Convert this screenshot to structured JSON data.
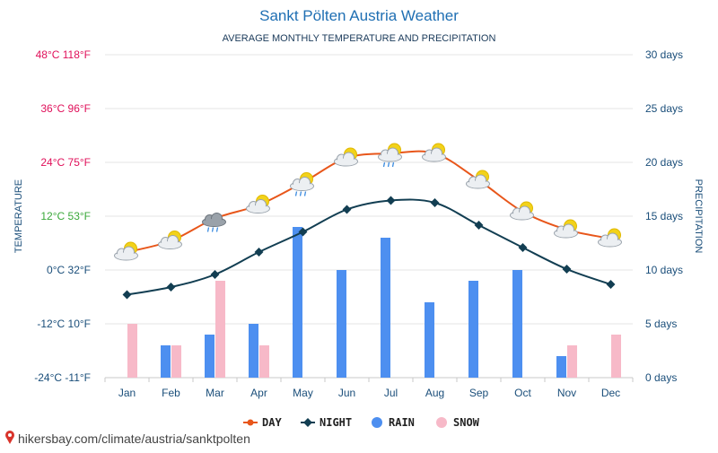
{
  "title": "Sankt Pölten Austria Weather",
  "subtitle": "AVERAGE MONTHLY TEMPERATURE AND PRECIPITATION",
  "source": "hikersbay.com/climate/austria/sanktpolten",
  "chart_data": {
    "type": "line",
    "categories": [
      "Jan",
      "Feb",
      "Mar",
      "Apr",
      "May",
      "Jun",
      "Jul",
      "Aug",
      "Sep",
      "Oct",
      "Nov",
      "Dec"
    ],
    "left_axis": {
      "title": "TEMPERATURE",
      "unit": "°C",
      "ylim": [
        -24,
        48
      ],
      "ticks": [
        {
          "value": 48,
          "label": "48°C 118°F",
          "color": "#e0105a"
        },
        {
          "value": 36,
          "label": "36°C 96°F",
          "color": "#e0105a"
        },
        {
          "value": 24,
          "label": "24°C 75°F",
          "color": "#e0105a"
        },
        {
          "value": 12,
          "label": "12°C 53°F",
          "color": "#3aa83a"
        },
        {
          "value": 0,
          "label": "0°C 32°F",
          "color": "#1a4e7a"
        },
        {
          "value": -12,
          "label": "-12°C 10°F",
          "color": "#1a4e7a"
        },
        {
          "value": -24,
          "label": "-24°C -11°F",
          "color": "#1a4e7a"
        }
      ]
    },
    "right_axis": {
      "title": "PRECIPITATION",
      "unit": "days",
      "ylim": [
        0,
        30
      ],
      "ticks": [
        {
          "value": 30,
          "label": "30 days"
        },
        {
          "value": 25,
          "label": "25 days"
        },
        {
          "value": 20,
          "label": "20 days"
        },
        {
          "value": 15,
          "label": "15 days"
        },
        {
          "value": 10,
          "label": "10 days"
        },
        {
          "value": 5,
          "label": "5 days"
        },
        {
          "value": 0,
          "label": "0 days"
        }
      ]
    },
    "series": [
      {
        "name": "DAY",
        "kind": "line",
        "axis": "left",
        "color": "#e8561a",
        "values": [
          4,
          6.5,
          11.5,
          14.5,
          19.5,
          25,
          26,
          26,
          20,
          13,
          9,
          7
        ]
      },
      {
        "name": "NIGHT",
        "kind": "line",
        "axis": "left",
        "color": "#123e52",
        "values": [
          -5.5,
          -3.8,
          -1,
          4,
          8.5,
          13.5,
          15.5,
          15,
          10,
          5,
          0.2,
          -3.2
        ]
      },
      {
        "name": "RAIN",
        "kind": "bar",
        "axis": "right",
        "color": "#4d8ff0",
        "values": [
          0,
          3,
          4,
          5,
          14,
          10,
          13,
          7,
          9,
          10,
          2,
          0
        ]
      },
      {
        "name": "SNOW",
        "kind": "bar",
        "axis": "right",
        "color": "#f7b9c8",
        "values": [
          5,
          3,
          9,
          3,
          0,
          0,
          0,
          0,
          0,
          0,
          3,
          4
        ]
      }
    ],
    "weather_icons": [
      "sun-cloud",
      "sun-cloud",
      "rain-cloud",
      "sun-cloud",
      "sun-rain-cloud",
      "sun-cloud",
      "sun-rain-cloud",
      "sun-cloud",
      "sun-cloud",
      "sun-cloud",
      "sun-cloud",
      "sun-cloud"
    ],
    "legend_position": "bottom",
    "grid": true
  }
}
